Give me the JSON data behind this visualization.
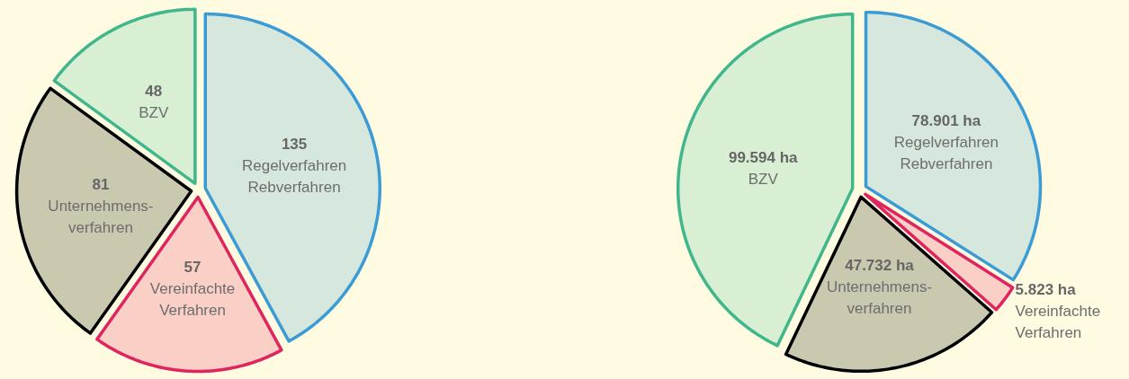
{
  "chart_data": [
    {
      "type": "pie",
      "categories": [
        "Regelverfahren\nRebverfahren",
        "Vereinfachte\nVerfahren",
        "Unternehmens-\nverfahren",
        "BZV"
      ],
      "values": [
        135,
        57,
        81,
        48
      ],
      "colors": [
        "#d6e8dd",
        "#f9cfc6",
        "#cbc8b0",
        "#d8efd3"
      ],
      "data_labels": true
    },
    {
      "type": "pie",
      "categories": [
        "Regelverfahren\nRebverfahren",
        "Vereinfachte\nVerfahren",
        "Unternehmens-\nverfahren",
        "BZV"
      ],
      "values": [
        78901,
        5823,
        47732,
        99594
      ],
      "value_labels": [
        "78.901 ha",
        "5.823 ha",
        "47.732 ha",
        "99.594 ha"
      ],
      "colors": [
        "#d6e8dd",
        "#f9cfc6",
        "#cbc8b0",
        "#d8efd3"
      ]
    }
  ]
}
